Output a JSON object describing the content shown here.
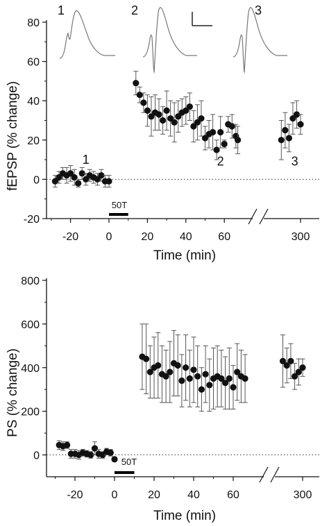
{
  "chart_data": [
    {
      "type": "scatter",
      "panel": "top",
      "ylabel": "fEPSP (% change)",
      "xlabel": "Time (min)",
      "ylim": [
        -20,
        80
      ],
      "y_ticks": [
        -20,
        0,
        20,
        40,
        60,
        80
      ],
      "x_tick_labels": [
        "-20",
        "0",
        "20",
        "40",
        "60",
        "300"
      ],
      "x_break": true,
      "baseline_y": 0,
      "stimulus_label": "50T",
      "stimulus_interval": [
        0,
        10
      ],
      "trace_labels": [
        "1",
        "2",
        "3"
      ],
      "point_labels": [
        {
          "text": "1",
          "x": -12,
          "y": 8
        },
        {
          "text": "2",
          "x": 58,
          "y": 7
        },
        {
          "text": "3",
          "x": 297,
          "y": 7
        }
      ],
      "series": [
        {
          "x": [
            -28,
            -26,
            -24,
            -22,
            -20,
            -18,
            -16,
            -14,
            -12,
            -10,
            -8,
            -6,
            -4,
            -2,
            0
          ],
          "y": [
            -1,
            1,
            3,
            2,
            3,
            1,
            -2,
            3,
            0,
            2,
            1,
            0,
            2,
            -1,
            -1
          ],
          "err": [
            3,
            3,
            3,
            4,
            4,
            4,
            2,
            3,
            3,
            3,
            3,
            3,
            3,
            3,
            3
          ]
        },
        {
          "x": [
            14,
            16,
            18,
            20,
            22,
            24,
            26,
            28,
            30,
            32,
            34,
            36,
            38,
            40,
            42,
            44,
            46,
            48,
            50,
            52,
            54,
            56,
            58,
            60,
            62,
            64,
            66
          ],
          "y": [
            49,
            43,
            39,
            35,
            32,
            34,
            33,
            30,
            35,
            31,
            29,
            32,
            34,
            35,
            37,
            27,
            29,
            31,
            21,
            23,
            24,
            15,
            24,
            18,
            28,
            27,
            22
          ],
          "err": [
            6,
            4,
            5,
            8,
            10,
            9,
            8,
            7,
            10,
            9,
            10,
            8,
            7,
            7,
            7,
            8,
            9,
            9,
            6,
            7,
            9,
            5,
            8,
            2,
            4,
            6,
            6
          ]
        },
        {
          "x": [
            67
          ],
          "y": [
            20
          ],
          "err": [
            7
          ]
        },
        {
          "x": [
            290,
            292,
            294,
            296,
            298,
            300
          ],
          "y": [
            20,
            25,
            21,
            31,
            33,
            28
          ],
          "err": [
            10,
            9,
            7,
            8,
            7,
            5
          ]
        }
      ]
    },
    {
      "type": "scatter",
      "panel": "bottom",
      "ylabel": "PS (% change)",
      "xlabel": "Time (min)",
      "ylim": [
        -100,
        800
      ],
      "y_ticks": [
        0,
        200,
        400,
        600,
        800
      ],
      "x_tick_labels": [
        "-20",
        "0",
        "20",
        "40",
        "60",
        "300"
      ],
      "x_break": true,
      "baseline_y": 0,
      "stimulus_label": "50T",
      "stimulus_interval": [
        0,
        10
      ],
      "series": [
        {
          "x": [
            -28,
            -26,
            -24,
            -22,
            -20,
            -18,
            -16,
            -14,
            -12,
            -10,
            -8,
            -6,
            -4,
            -2,
            0
          ],
          "y": [
            45,
            40,
            45,
            5,
            5,
            0,
            10,
            5,
            0,
            30,
            5,
            0,
            15,
            10,
            -20
          ],
          "err": [
            20,
            20,
            15,
            20,
            20,
            20,
            15,
            15,
            15,
            30,
            20,
            15,
            15,
            15,
            10
          ]
        },
        {
          "x": [
            14,
            16,
            18,
            20,
            22,
            24,
            26,
            28,
            30,
            32,
            34,
            36,
            38,
            40,
            42,
            44,
            46,
            48,
            50,
            52,
            54,
            56,
            58,
            60,
            62,
            64,
            66
          ],
          "y": [
            450,
            440,
            380,
            400,
            410,
            370,
            360,
            380,
            420,
            410,
            340,
            400,
            350,
            390,
            360,
            300,
            370,
            320,
            350,
            360,
            350,
            330,
            350,
            310,
            380,
            360,
            350
          ],
          "err": [
            150,
            160,
            120,
            140,
            150,
            130,
            120,
            140,
            150,
            140,
            120,
            150,
            130,
            150,
            140,
            100,
            130,
            120,
            140,
            140,
            130,
            120,
            140,
            100,
            130,
            120,
            110
          ]
        },
        {
          "x": [
            290,
            292,
            294,
            296,
            298,
            300
          ],
          "y": [
            430,
            410,
            430,
            360,
            380,
            400
          ],
          "err": [
            120,
            80,
            80,
            60,
            60,
            40
          ]
        }
      ]
    }
  ]
}
